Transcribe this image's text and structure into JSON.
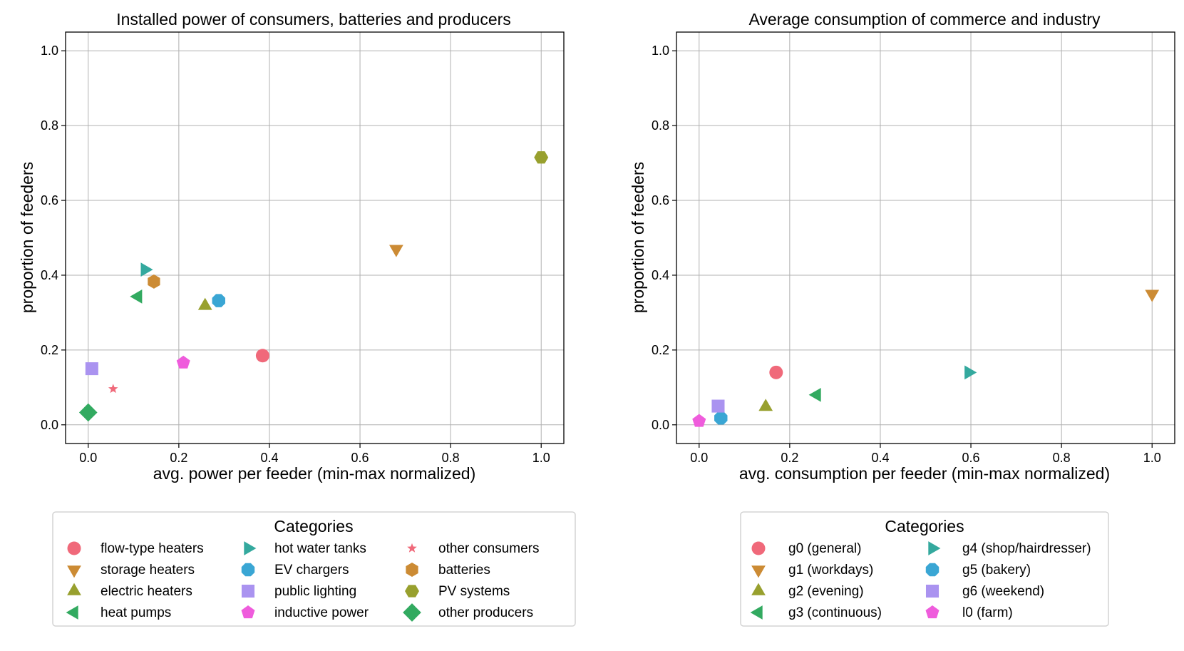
{
  "chart_data": [
    {
      "type": "scatter",
      "title": "Installed power of consumers, batteries and producers",
      "xlabel": "avg. power per feeder (min-max normalized)",
      "ylabel": "proportion of feeders",
      "xlim": [
        -0.05,
        1.05
      ],
      "ylim": [
        -0.05,
        1.05
      ],
      "xticks": [
        "0.0",
        "0.2",
        "0.4",
        "0.6",
        "0.8",
        "1.0"
      ],
      "yticks": [
        "0.0",
        "0.2",
        "0.4",
        "0.6",
        "0.8",
        "1.0"
      ],
      "grid": true,
      "legend": {
        "title": "Categories",
        "placement": "below",
        "columns": 3
      },
      "series": [
        {
          "name": "flow-type heaters",
          "marker": "circle",
          "color": "#f0697a",
          "x": 0.385,
          "y": 0.185
        },
        {
          "name": "storage heaters",
          "marker": "triangle-down",
          "color": "#cc8b34",
          "x": 0.68,
          "y": 0.47
        },
        {
          "name": "electric heaters",
          "marker": "triangle-up",
          "color": "#98a02e",
          "x": 0.258,
          "y": 0.318
        },
        {
          "name": "heat pumps",
          "marker": "triangle-left",
          "color": "#32aa60",
          "x": 0.11,
          "y": 0.343
        },
        {
          "name": "hot water tanks",
          "marker": "triangle-right",
          "color": "#34a99e",
          "x": 0.125,
          "y": 0.415
        },
        {
          "name": "EV chargers",
          "marker": "octagon",
          "color": "#3aa6d4",
          "x": 0.288,
          "y": 0.332
        },
        {
          "name": "public lighting",
          "marker": "square",
          "color": "#aa93f0",
          "x": 0.008,
          "y": 0.15
        },
        {
          "name": "inductive power",
          "marker": "pentagon",
          "color": "#ef5cdc",
          "x": 0.21,
          "y": 0.166
        },
        {
          "name": "other consumers",
          "marker": "star",
          "color": "#f0697a",
          "x": 0.055,
          "y": 0.096
        },
        {
          "name": "batteries",
          "marker": "hexagon",
          "color": "#cc8b34",
          "x": 0.145,
          "y": 0.383
        },
        {
          "name": "PV systems",
          "marker": "hexagon-flat",
          "color": "#98a02e",
          "x": 1.0,
          "y": 0.715
        },
        {
          "name": "other producers",
          "marker": "diamond",
          "color": "#32aa60",
          "x": 0.0,
          "y": 0.033
        }
      ]
    },
    {
      "type": "scatter",
      "title": "Average consumption of commerce and industry",
      "xlabel": "avg. consumption per feeder (min-max normalized)",
      "ylabel": "proportion of feeders",
      "xlim": [
        -0.05,
        1.05
      ],
      "ylim": [
        -0.05,
        1.05
      ],
      "xticks": [
        "0.0",
        "0.2",
        "0.4",
        "0.6",
        "0.8",
        "1.0"
      ],
      "yticks": [
        "0.0",
        "0.2",
        "0.4",
        "0.6",
        "0.8",
        "1.0"
      ],
      "grid": true,
      "legend": {
        "title": "Categories",
        "placement": "below",
        "columns": 2
      },
      "series": [
        {
          "name": "g0 (general)",
          "marker": "circle",
          "color": "#f0697a",
          "x": 0.17,
          "y": 0.14
        },
        {
          "name": "g1 (workdays)",
          "marker": "triangle-down",
          "color": "#cc8b34",
          "x": 1.0,
          "y": 0.35
        },
        {
          "name": "g2 (evening)",
          "marker": "triangle-up",
          "color": "#98a02e",
          "x": 0.147,
          "y": 0.048
        },
        {
          "name": "g3 (continuous)",
          "marker": "triangle-left",
          "color": "#32aa60",
          "x": 0.26,
          "y": 0.08
        },
        {
          "name": "g4 (shop/hairdresser)",
          "marker": "triangle-right",
          "color": "#34a99e",
          "x": 0.595,
          "y": 0.14
        },
        {
          "name": "g5 (bakery)",
          "marker": "octagon",
          "color": "#3aa6d4",
          "x": 0.048,
          "y": 0.018
        },
        {
          "name": "g6 (weekend)",
          "marker": "square",
          "color": "#aa93f0",
          "x": 0.042,
          "y": 0.05
        },
        {
          "name": "l0 (farm)",
          "marker": "pentagon",
          "color": "#ef5cdc",
          "x": 0.0,
          "y": 0.01
        }
      ]
    }
  ]
}
